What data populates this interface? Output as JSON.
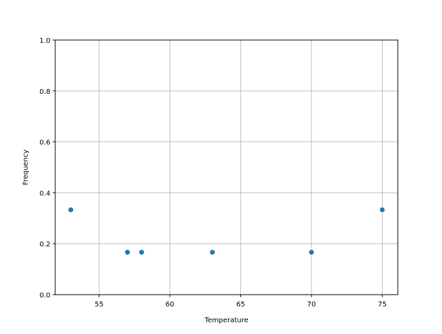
{
  "chart_data": {
    "type": "scatter",
    "title": "",
    "xlabel": "Temperature",
    "ylabel": "Frequency",
    "xlim": [
      51.9,
      76.1
    ],
    "ylim": [
      0,
      1.0
    ],
    "grid": true,
    "x_ticks": [
      55,
      60,
      65,
      70,
      75
    ],
    "x_tick_labels": [
      "55",
      "60",
      "65",
      "70",
      "75"
    ],
    "y_ticks": [
      0,
      0.2,
      0.4,
      0.6,
      0.8,
      1.0
    ],
    "y_tick_labels": [
      "0.0",
      "0.2",
      "0.4",
      "0.6",
      "0.8",
      "1.0"
    ],
    "series": [
      {
        "color": "#1f77b4",
        "x": [
          53,
          57,
          58,
          63,
          70,
          75
        ],
        "y": [
          0.3333,
          0.1667,
          0.1667,
          0.1667,
          0.1667,
          0.3333
        ]
      }
    ]
  }
}
